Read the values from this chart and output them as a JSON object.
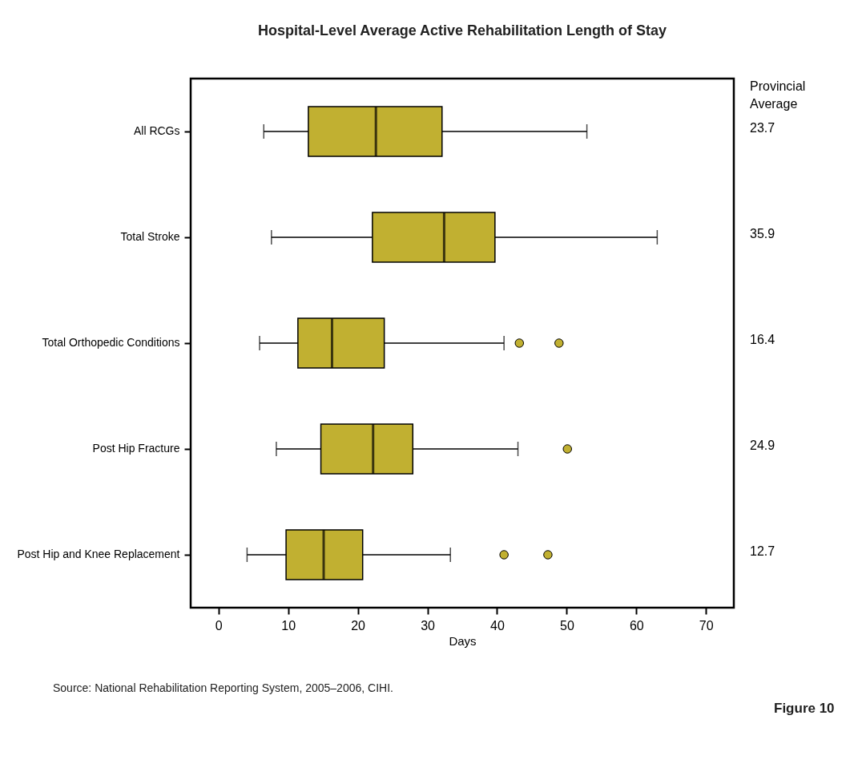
{
  "chart_data": {
    "type": "box",
    "orientation": "horizontal",
    "title": "Hospital-Level Average Active Rehabilitation Length of Stay",
    "xlabel": "Days",
    "y2label": "Provincial Average",
    "categories": [
      "All RCGs",
      "Total Stroke",
      "Total Orthopedic Conditions",
      "Post Hip Fracture",
      "Post Hip and Knee Replacement"
    ],
    "y2_categories": [
      "23.7",
      "35.9",
      "16.4",
      "24.9",
      "12.7"
    ],
    "series": [
      {
        "color": "#c1b031",
        "boxes": [
          {
            "low": 6.5,
            "q1": 12.9,
            "median": 22.6,
            "q3": 32.1,
            "high": 52.9
          },
          {
            "low": 7.6,
            "q1": 22.1,
            "median": 32.4,
            "q3": 39.7,
            "high": 63.0
          },
          {
            "low": 5.9,
            "q1": 11.4,
            "median": 16.3,
            "q3": 23.8,
            "high": 41.0,
            "outliers": [
              43.2,
              48.9
            ]
          },
          {
            "low": 8.3,
            "q1": 14.7,
            "median": 22.2,
            "q3": 27.9,
            "high": 43.0,
            "outliers": [
              50.1
            ]
          },
          {
            "low": 4.1,
            "q1": 9.7,
            "median": 15.1,
            "q3": 20.7,
            "high": 33.3,
            "outliers": [
              41.0,
              47.3
            ]
          }
        ]
      }
    ],
    "xlim": [
      -4,
      74
    ],
    "xticks": [
      0,
      10,
      20,
      30,
      40,
      50,
      60,
      70
    ],
    "annotations": [
      "Source: National Rehabilitation Reporting System, 2005–2006, CIHI.",
      "Figure 10"
    ]
  }
}
